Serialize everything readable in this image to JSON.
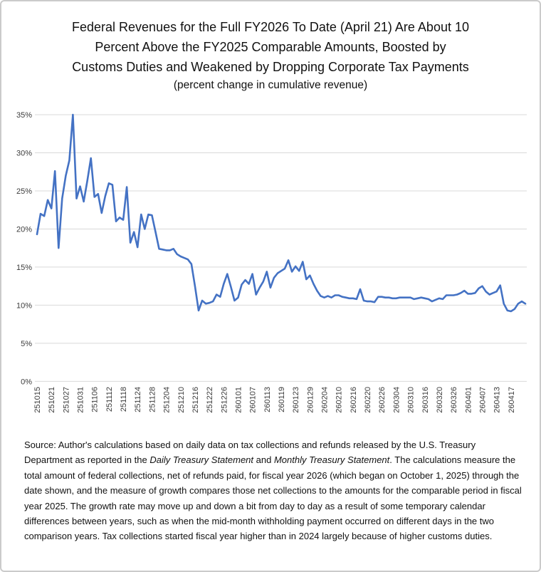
{
  "figure": {
    "title_lines": [
      "Federal Revenues for the Full FY2026 To Date (April 21) Are About 10",
      "Percent Above the FY2025 Comparable Amounts, Boosted by",
      "Customs Duties and Weakened by Dropping Corporate Tax Payments"
    ],
    "subtitle": "(percent change in cumulative revenue)",
    "source_segments": [
      {
        "text": "Source: Author's calculations based on daily data on tax collections and refunds released by the U.S. Treasury Department as reported in the ",
        "italic": false
      },
      {
        "text": "Daily Treasury Statement",
        "italic": true
      },
      {
        "text": " and ",
        "italic": false
      },
      {
        "text": "Monthly Treasury Statement",
        "italic": true
      },
      {
        "text": ". The calculations measure the total amount of federal collections, net of refunds paid, for fiscal year 2026 (which began on October 1, 2025) through the date shown, and the measure of growth compares those net collections to the amounts for the comparable period in fiscal year 2025. The growth rate may move up and down a bit from day to day as a result of some temporary calendar differences between years, such as when the mid-month withholding payment occurred on different days in the two comparison years.  Tax collections started fiscal year higher than in 2024 largely because of higher customs duties.",
        "italic": false
      }
    ]
  },
  "chart_data": {
    "type": "line",
    "title": "Federal Revenues for the Full FY2026 To Date (April 21) Are About 10 Percent Above the FY2025 Comparable Amounts, Boosted by Customs Duties and Weakened by Dropping Corporate Tax Payments",
    "subtitle": "(percent change in cumulative revenue)",
    "xlabel": "",
    "ylabel": "",
    "unit": "percent change vs FY2025, cumulative",
    "ylim": [
      0,
      35
    ],
    "y_tick_labels": [
      "0%",
      "5%",
      "10%",
      "15%",
      "20%",
      "25%",
      "30%",
      "35%"
    ],
    "grid": "horizontal",
    "legend_position": "none",
    "line_color": "#4472C4",
    "gridline_color": "#D9D9D9",
    "x_ticks_every_n_points": 4,
    "x_tick_labels": [
      "251015",
      "251021",
      "251027",
      "251031",
      "251106",
      "251112",
      "251118",
      "251124",
      "251128",
      "251204",
      "251210",
      "251216",
      "251222",
      "251226",
      "260101",
      "260107",
      "260113",
      "260119",
      "260123",
      "260129",
      "260204",
      "260210",
      "260216",
      "260220",
      "260226",
      "260304",
      "260310",
      "260316",
      "260320",
      "260326",
      "260401",
      "260407",
      "260413",
      "260417"
    ],
    "values": [
      19.3,
      22.0,
      21.7,
      23.8,
      22.7,
      27.6,
      17.5,
      24.0,
      27.0,
      29.0,
      35.0,
      24.0,
      25.6,
      23.6,
      26.3,
      29.3,
      24.2,
      24.6,
      22.1,
      24.3,
      26.0,
      25.8,
      21.0,
      21.5,
      21.2,
      25.5,
      18.2,
      19.6,
      17.6,
      21.9,
      20.0,
      21.9,
      21.8,
      19.6,
      17.4,
      17.3,
      17.2,
      17.2,
      17.4,
      16.7,
      16.4,
      16.2,
      16.0,
      15.4,
      12.5,
      9.3,
      10.6,
      10.2,
      10.3,
      10.5,
      11.4,
      11.1,
      12.8,
      14.1,
      12.4,
      10.6,
      11.0,
      12.7,
      13.3,
      12.8,
      14.1,
      11.4,
      12.3,
      13.1,
      14.4,
      12.3,
      13.6,
      14.2,
      14.5,
      14.8,
      15.9,
      14.4,
      15.1,
      14.5,
      15.7,
      13.4,
      13.9,
      12.8,
      11.9,
      11.2,
      11.0,
      11.2,
      11.0,
      11.3,
      11.3,
      11.1,
      11.0,
      10.9,
      10.9,
      10.8,
      12.1,
      10.6,
      10.5,
      10.5,
      10.4,
      11.1,
      11.1,
      11.0,
      11.0,
      10.9,
      10.9,
      11.0,
      11.0,
      11.0,
      11.0,
      10.8,
      10.9,
      11.0,
      10.9,
      10.8,
      10.5,
      10.7,
      10.9,
      10.8,
      11.3,
      11.3,
      11.3,
      11.4,
      11.6,
      11.9,
      11.5,
      11.5,
      11.6,
      12.2,
      12.5,
      11.8,
      11.4,
      11.6,
      11.8,
      12.6,
      10.2,
      9.3,
      9.2,
      9.5,
      10.2,
      10.5,
      10.2
    ]
  }
}
